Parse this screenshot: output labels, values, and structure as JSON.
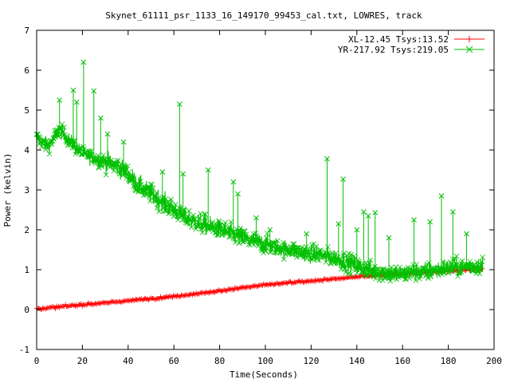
{
  "chart_data": {
    "type": "scatter",
    "title": "Skynet_61111_psr_1133_16_149170_99453_cal.txt, LOWRES, track",
    "xlabel": "Time(Seconds)",
    "ylabel": "Power (kelvin)",
    "xlim": [
      0,
      200
    ],
    "ylim": [
      -1,
      7
    ],
    "xticks": [
      0,
      20,
      40,
      60,
      80,
      100,
      120,
      140,
      160,
      180,
      200
    ],
    "yticks": [
      -1,
      0,
      1,
      2,
      3,
      4,
      5,
      6,
      7
    ],
    "legend_position": "top-right",
    "series": [
      {
        "name": "XL-12.45 Tsys:13.52",
        "color": "#ff0000",
        "marker": "plus",
        "x": [
          0,
          20,
          40,
          60,
          80,
          100,
          120,
          140,
          160,
          180,
          195
        ],
        "y": [
          0.02,
          0.12,
          0.22,
          0.33,
          0.47,
          0.62,
          0.72,
          0.82,
          0.9,
          0.97,
          1.02
        ]
      },
      {
        "name": "YR-217.92 Tsys:219.05",
        "color": "#00c000",
        "marker": "x",
        "x": [
          0,
          5,
          10,
          15,
          20,
          25,
          30,
          35,
          40,
          45,
          50,
          55,
          60,
          65,
          70,
          75,
          80,
          85,
          90,
          95,
          100,
          105,
          110,
          115,
          120,
          125,
          130,
          135,
          140,
          145,
          150,
          155,
          160,
          165,
          170,
          175,
          180,
          185,
          190,
          195
        ],
        "y": [
          4.3,
          4.1,
          4.5,
          4.2,
          3.9,
          3.8,
          3.7,
          3.6,
          3.4,
          3.1,
          2.9,
          2.7,
          2.5,
          2.3,
          2.2,
          2.1,
          2.0,
          1.9,
          1.8,
          1.7,
          1.65,
          1.55,
          1.5,
          1.45,
          1.4,
          1.35,
          1.3,
          1.2,
          1.1,
          1.0,
          0.95,
          0.9,
          0.9,
          0.95,
          0.95,
          1.0,
          1.05,
          1.05,
          1.1,
          1.1
        ],
        "spikes": [
          {
            "x": 10,
            "y": 5.25
          },
          {
            "x": 16,
            "y": 5.5
          },
          {
            "x": 17.5,
            "y": 5.2
          },
          {
            "x": 20.5,
            "y": 6.2
          },
          {
            "x": 25,
            "y": 5.48
          },
          {
            "x": 28,
            "y": 4.8
          },
          {
            "x": 31,
            "y": 4.4
          },
          {
            "x": 38,
            "y": 4.2
          },
          {
            "x": 55,
            "y": 3.45
          },
          {
            "x": 62.5,
            "y": 5.15
          },
          {
            "x": 64,
            "y": 3.4
          },
          {
            "x": 75,
            "y": 3.5
          },
          {
            "x": 86,
            "y": 3.2
          },
          {
            "x": 88,
            "y": 2.9
          },
          {
            "x": 96,
            "y": 2.3
          },
          {
            "x": 102,
            "y": 2.0
          },
          {
            "x": 118,
            "y": 1.9
          },
          {
            "x": 127,
            "y": 3.78
          },
          {
            "x": 132,
            "y": 2.15
          },
          {
            "x": 134,
            "y": 3.27
          },
          {
            "x": 140,
            "y": 2.0
          },
          {
            "x": 143,
            "y": 2.45
          },
          {
            "x": 145,
            "y": 2.35
          },
          {
            "x": 148,
            "y": 2.43
          },
          {
            "x": 154,
            "y": 1.8
          },
          {
            "x": 165,
            "y": 2.25
          },
          {
            "x": 172,
            "y": 2.2
          },
          {
            "x": 177,
            "y": 2.85
          },
          {
            "x": 182,
            "y": 2.45
          },
          {
            "x": 188,
            "y": 1.9
          }
        ]
      }
    ]
  }
}
